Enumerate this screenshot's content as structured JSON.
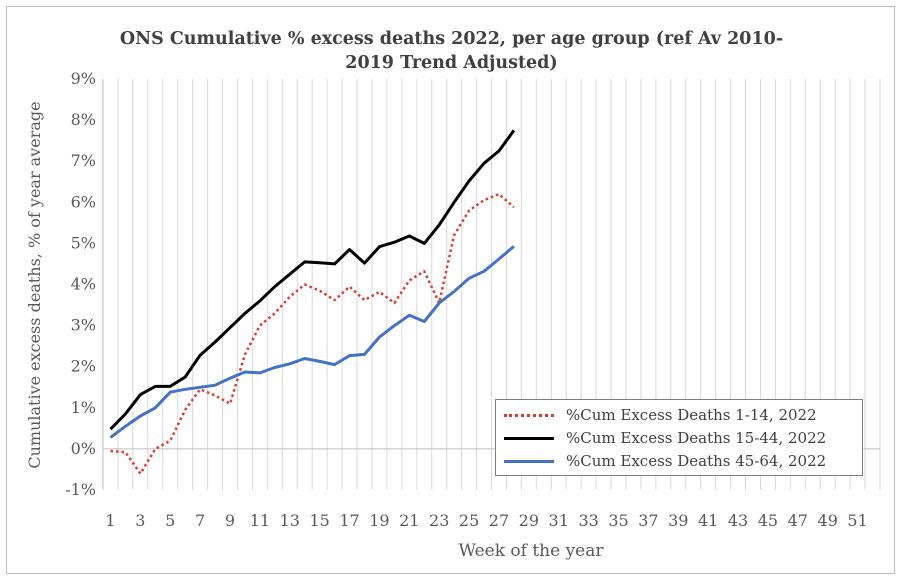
{
  "chart_data": {
    "type": "line",
    "title_lines": [
      "ONS Cumulative % excess deaths 2022, per age group (ref Av 2010-",
      "2019 Trend Adjusted)"
    ],
    "xlabel": "Week of the year",
    "ylabel": "Cumulative excess deaths,  % of  year average",
    "xlim": [
      1,
      52
    ],
    "ylim": [
      -1,
      9
    ],
    "x_ticks": [
      1,
      3,
      5,
      7,
      9,
      11,
      13,
      15,
      17,
      19,
      21,
      23,
      25,
      27,
      29,
      31,
      33,
      35,
      37,
      39,
      41,
      43,
      45,
      47,
      49,
      51
    ],
    "y_ticks": [
      -1,
      0,
      1,
      2,
      3,
      4,
      5,
      6,
      7,
      8,
      9
    ],
    "y_tick_labels": [
      "-1%",
      "0%",
      "1%",
      "2%",
      "3%",
      "4%",
      "5%",
      "6%",
      "7%",
      "8%",
      "9%"
    ],
    "grid": "vertical",
    "legend_position": "bottom-right",
    "x": [
      1,
      2,
      3,
      4,
      5,
      6,
      7,
      8,
      9,
      10,
      11,
      12,
      13,
      14,
      15,
      16,
      17,
      18,
      19,
      20,
      21,
      22,
      23,
      24,
      25,
      26,
      27,
      28
    ],
    "series": [
      {
        "name": "%Cum Excess Deaths 1-14, 2022",
        "color": "#e03a2c",
        "style": "dotted",
        "values": [
          -0.05,
          -0.08,
          -0.6,
          0.0,
          0.2,
          0.95,
          1.45,
          1.3,
          1.1,
          2.3,
          3.0,
          3.3,
          3.7,
          4.0,
          3.85,
          3.62,
          3.95,
          3.62,
          3.82,
          3.55,
          4.1,
          4.32,
          3.55,
          5.2,
          5.8,
          6.05,
          6.2,
          5.88
        ]
      },
      {
        "name": "%Cum Excess Deaths 15-44, 2022",
        "color": "#000000",
        "style": "solid",
        "values": [
          0.48,
          0.85,
          1.32,
          1.52,
          1.52,
          1.75,
          2.28,
          2.6,
          2.95,
          3.3,
          3.6,
          3.95,
          4.25,
          4.55,
          4.53,
          4.5,
          4.85,
          4.52,
          4.92,
          5.03,
          5.18,
          5.0,
          5.45,
          6.0,
          6.52,
          6.95,
          7.25,
          7.75
        ]
      },
      {
        "name": "%Cum Excess Deaths 45-64, 2022",
        "color": "#4472c4",
        "style": "solid",
        "values": [
          0.28,
          0.55,
          0.8,
          1.0,
          1.38,
          1.45,
          1.5,
          1.55,
          1.72,
          1.87,
          1.85,
          1.98,
          2.07,
          2.2,
          2.13,
          2.05,
          2.27,
          2.3,
          2.72,
          3.0,
          3.25,
          3.1,
          3.55,
          3.83,
          4.15,
          4.32,
          4.62,
          4.93
        ]
      }
    ]
  }
}
